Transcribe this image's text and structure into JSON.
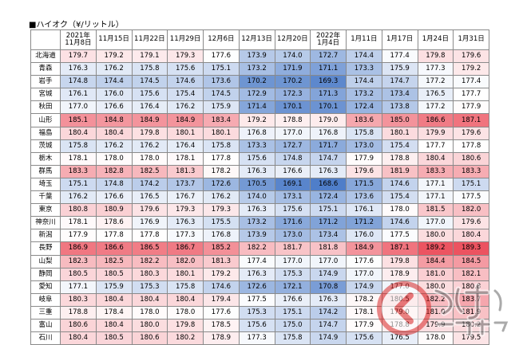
{
  "title": "■ハイオク（¥/リットル）",
  "columns": [
    {
      "year": "2021年",
      "date": "11月8日"
    },
    {
      "year": "",
      "date": "11月15日"
    },
    {
      "year": "",
      "date": "11月22日"
    },
    {
      "year": "",
      "date": "11月29日"
    },
    {
      "year": "",
      "date": "12月6日"
    },
    {
      "year": "",
      "date": "12月13日"
    },
    {
      "year": "",
      "date": "12月20日"
    },
    {
      "year": "2022年",
      "date": "1月4日"
    },
    {
      "year": "",
      "date": "1月11日"
    },
    {
      "year": "",
      "date": "1月17日"
    },
    {
      "year": "",
      "date": "1月24日"
    },
    {
      "year": "",
      "date": "1月31日"
    }
  ],
  "rows": [
    {
      "name": "北海道",
      "values": [
        "179.7",
        "179.2",
        "179.1",
        "179.3",
        "177.6",
        "173.9",
        "174.0",
        "172.7",
        "174.4",
        "177.4",
        "179.8",
        "179.6"
      ]
    },
    {
      "name": "青森",
      "values": [
        "176.3",
        "176.2",
        "175.8",
        "175.6",
        "175.1",
        "173.2",
        "171.9",
        "171.1",
        "173.3",
        "175.9",
        "177.3",
        "179.2"
      ]
    },
    {
      "name": "岩手",
      "values": [
        "174.8",
        "174.4",
        "174.5",
        "174.6",
        "173.6",
        "170.2",
        "170.2",
        "169.3",
        "174.4",
        "174.7",
        "177.2",
        "177.4"
      ]
    },
    {
      "name": "宮城",
      "values": [
        "176.1",
        "176.0",
        "175.6",
        "175.4",
        "174.5",
        "172.9",
        "172.3",
        "171.3",
        "173.2",
        "173.4",
        "176.5",
        "177.7"
      ]
    },
    {
      "name": "秋田",
      "values": [
        "177.0",
        "176.6",
        "176.4",
        "176.2",
        "175.9",
        "171.4",
        "170.1",
        "170.1",
        "172.4",
        "173.8",
        "177.2",
        "177.9"
      ]
    },
    {
      "name": "山形",
      "values": [
        "185.1",
        "184.8",
        "184.9",
        "184.9",
        "183.4",
        "179.2",
        "178.8",
        "179.0",
        "183.6",
        "185.0",
        "186.6",
        "187.1"
      ]
    },
    {
      "name": "福島",
      "values": [
        "180.4",
        "180.4",
        "179.8",
        "180.1",
        "180.1",
        "176.8",
        "177.0",
        "176.8",
        "175.8",
        "180.1",
        "179.9",
        "179.6"
      ]
    },
    {
      "name": "茨城",
      "values": [
        "175.8",
        "176.2",
        "176.2",
        "176.4",
        "175.8",
        "173.3",
        "172.7",
        "171.7",
        "173.0",
        "175.4",
        "177.7",
        "177.8"
      ]
    },
    {
      "name": "栃木",
      "values": [
        "178.1",
        "178.0",
        "178.0",
        "178.1",
        "177.8",
        "175.6",
        "174.8",
        "174.7",
        "177.9",
        "178.8",
        "180.4",
        "180.6"
      ]
    },
    {
      "name": "群馬",
      "values": [
        "183.3",
        "182.8",
        "182.5",
        "181.3",
        "178.2",
        "176.3",
        "176.6",
        "176.3",
        "179.6",
        "181.9",
        "183.3",
        "183.3"
      ]
    },
    {
      "name": "埼玉",
      "values": [
        "175.1",
        "174.8",
        "174.2",
        "173.7",
        "172.6",
        "170.5",
        "169.1",
        "168.6",
        "171.5",
        "174.6",
        "177.1",
        "175.1"
      ]
    },
    {
      "name": "千葉",
      "values": [
        "176.2",
        "176.6",
        "176.5",
        "176.7",
        "176.2",
        "174.0",
        "173.1",
        "172.4",
        "173.6",
        "175.4",
        "177.1",
        "177.5"
      ]
    },
    {
      "name": "東京",
      "values": [
        "180.8",
        "180.9",
        "179.6",
        "179.3",
        "179.3",
        "176.3",
        "175.6",
        "175.1",
        "176.1",
        "178.0",
        "181.5",
        "182.0"
      ]
    },
    {
      "name": "神奈川",
      "values": [
        "178.1",
        "178.6",
        "176.9",
        "176.3",
        "175.5",
        "173.2",
        "171.6",
        "171.2",
        "171.2",
        "174.6",
        "177.0",
        "179.6"
      ]
    },
    {
      "name": "新潟",
      "values": [
        "177.9",
        "177.8",
        "177.8",
        "177.3",
        "176.8",
        "173.9",
        "173.0",
        "173.4",
        "176.0",
        "177.5",
        "180.0",
        "180.4"
      ]
    },
    {
      "name": "長野",
      "values": [
        "186.9",
        "186.6",
        "186.5",
        "186.7",
        "185.2",
        "182.2",
        "181.7",
        "181.8",
        "184.9",
        "187.1",
        "189.2",
        "189.3"
      ]
    },
    {
      "name": "山梨",
      "values": [
        "182.3",
        "182.5",
        "182.2",
        "182.0",
        "181.3",
        "177.4",
        "177.0",
        "177.0",
        "177.6",
        "179.8",
        "184.4",
        "184.5"
      ]
    },
    {
      "name": "静岡",
      "values": [
        "180.5",
        "180.5",
        "180.3",
        "180.1",
        "179.2",
        "176.3",
        "175.3",
        "174.9",
        "177.0",
        "178.9",
        "181.0",
        "182.1"
      ]
    },
    {
      "name": "愛知",
      "values": [
        "177.1",
        "175.9",
        "175.3",
        "175.8",
        "174.6",
        "172.6",
        "172.1",
        "170.8",
        "174.9",
        "177.0",
        "180.0",
        "180.8"
      ]
    },
    {
      "name": "岐阜",
      "values": [
        "180.3",
        "180.4",
        "180.4",
        "180.4",
        "179.4",
        "177.5",
        "176.6",
        "176.3",
        "178.2",
        "180.5",
        "182.2",
        "183.7"
      ]
    },
    {
      "name": "三重",
      "values": [
        "178.8",
        "178.4",
        "178.0",
        "178.0",
        "177.6",
        "175.3",
        "175.1",
        "174.2",
        "178.1",
        "179.0",
        "181.0",
        "181.9"
      ]
    },
    {
      "name": "富山",
      "values": [
        "180.6",
        "180.4",
        "180.0",
        "179.8",
        "178.5",
        "175.6",
        "175.0",
        "174.7",
        "177.9",
        "178.8",
        "179.9",
        "180.2"
      ]
    },
    {
      "name": "石川",
      "values": [
        "180.4",
        "180.5",
        "180.6",
        "180.2",
        "178.9",
        "177.3",
        "175.8",
        "174.9",
        "175.6",
        "176.5",
        "178.0",
        "179.5"
      ]
    }
  ],
  "colors": {
    "low": "#4f7ec9",
    "mid": "#ffffff",
    "high": "#ec5360"
  },
  "watermark": {
    "label": "くるまのニュース",
    "icon": "car-news-logo-icon",
    "color": "#d92a2a"
  }
}
